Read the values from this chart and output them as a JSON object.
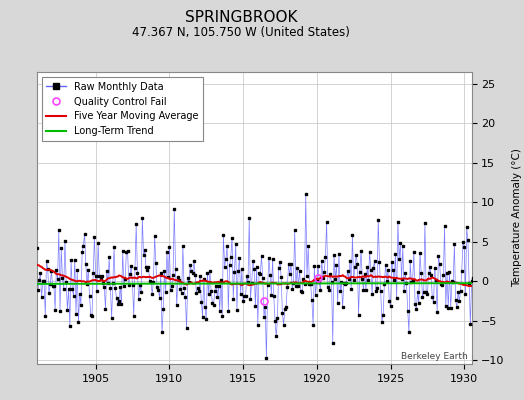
{
  "title": "SPRINGBROOK",
  "subtitle": "47.367 N, 105.750 W (United States)",
  "ylabel": "Temperature Anomaly (°C)",
  "watermark": "Berkeley Earth",
  "xlim": [
    1901.0,
    1930.5
  ],
  "ylim": [
    -10.5,
    26.5
  ],
  "yticks": [
    -10,
    -5,
    0,
    5,
    10,
    15,
    20,
    25
  ],
  "xticks": [
    1905,
    1910,
    1915,
    1920,
    1925,
    1930
  ],
  "bg_color": "#d8d8d8",
  "plot_bg_color": "#ffffff",
  "grid_color": "#cccccc",
  "raw_line_color": "#6666ff",
  "raw_marker_color": "#000000",
  "moving_avg_color": "#dd0000",
  "trend_color": "#00bb00",
  "qc_fail_color": "#ff44ff",
  "title_fontsize": 11,
  "subtitle_fontsize": 8.5,
  "seed": 7,
  "start_year": 1901.0,
  "end_year": 1930.0
}
